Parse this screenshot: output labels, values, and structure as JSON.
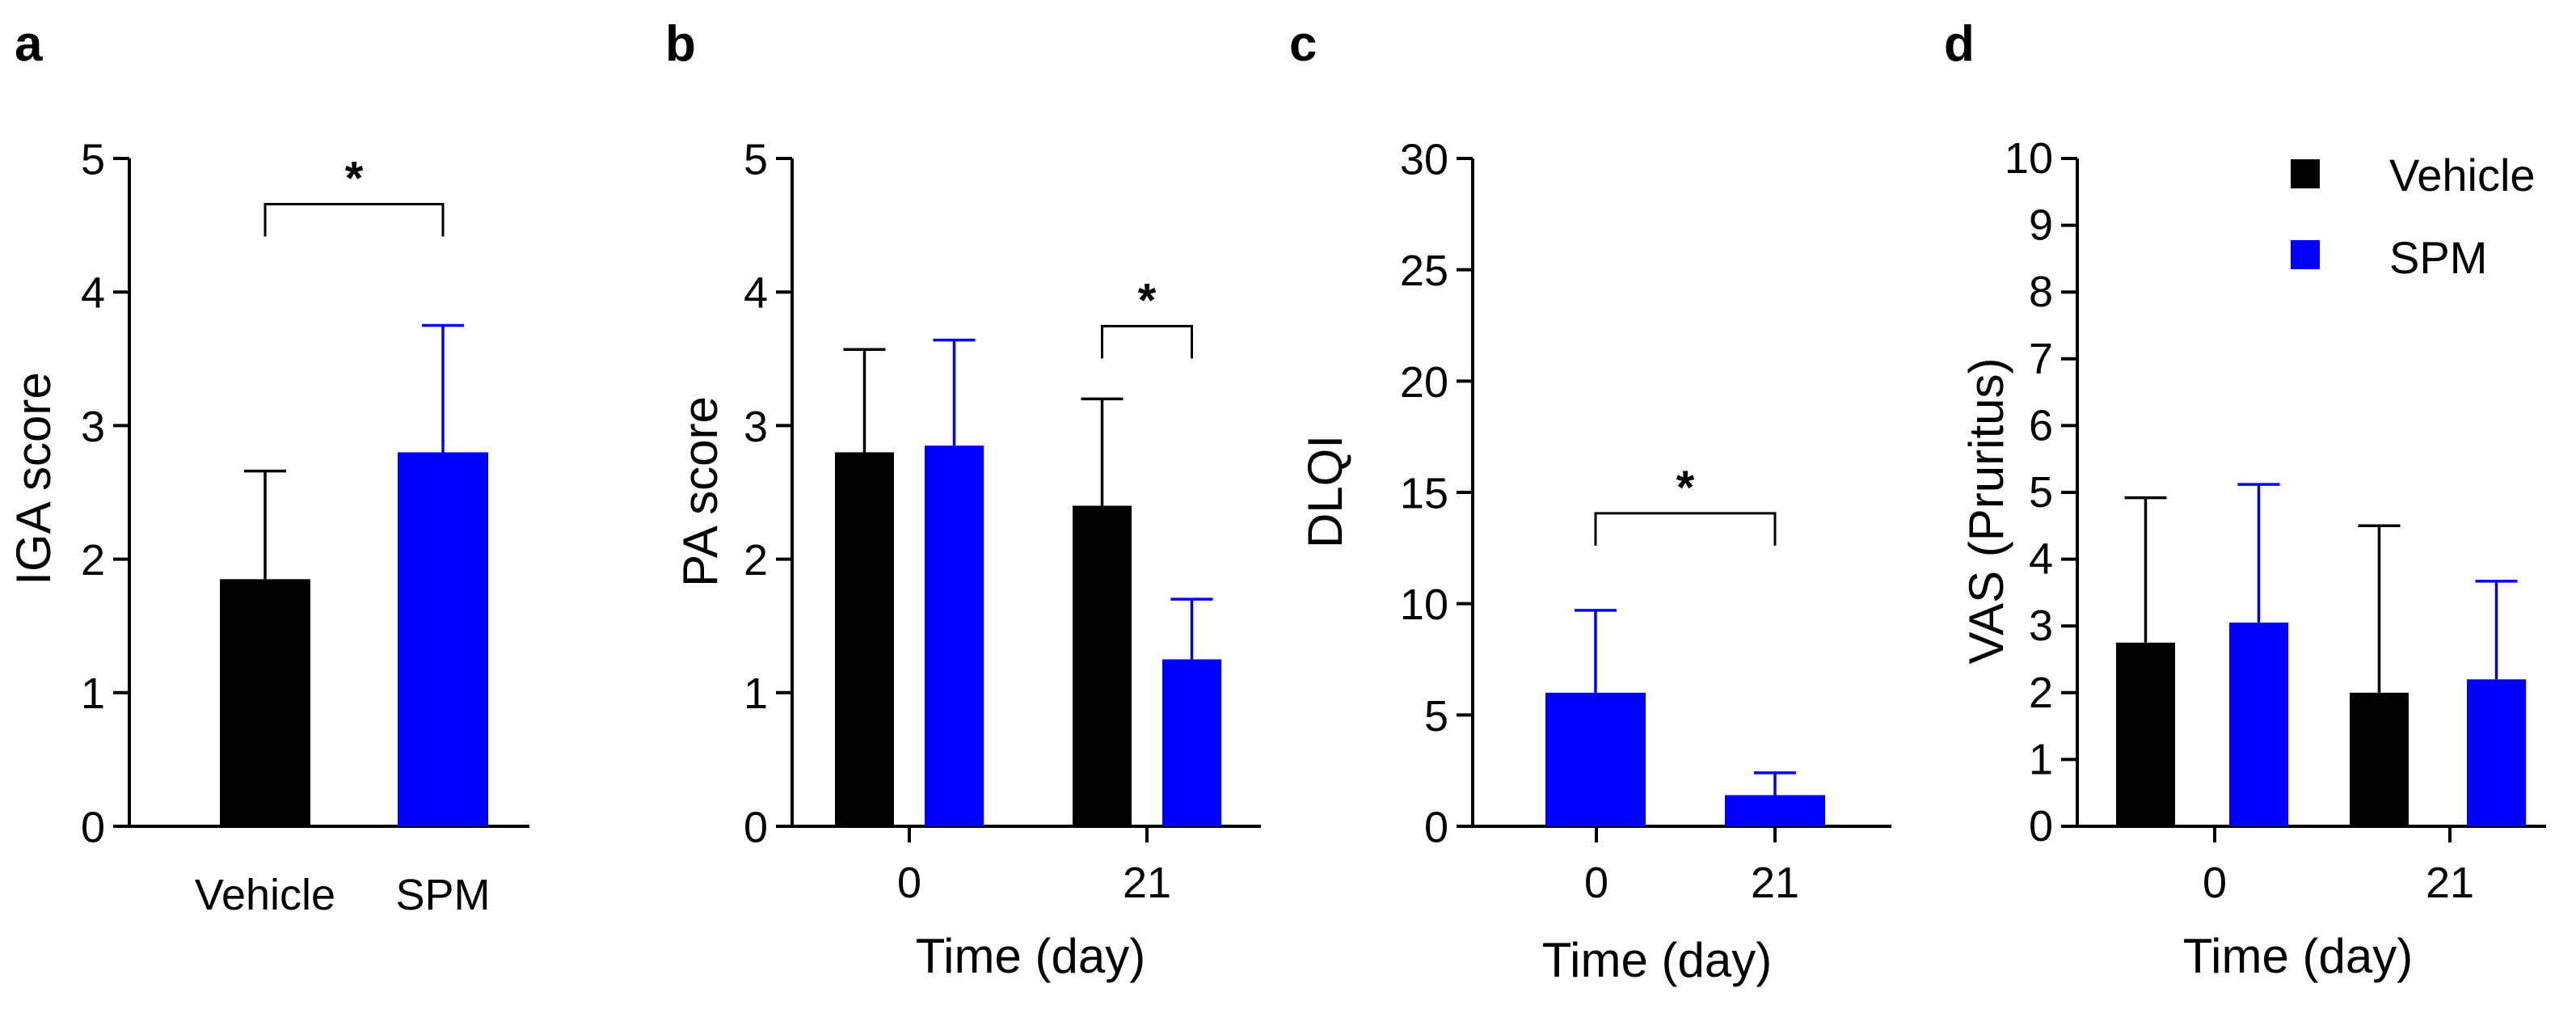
{
  "colors": {
    "Vehicle": "#000000",
    "SPM": "#0000ff"
  },
  "legend": [
    {
      "name": "Vehicle",
      "color": "#000000"
    },
    {
      "name": "SPM",
      "color": "#0000ff"
    }
  ],
  "chart_data": [
    {
      "panel": "a",
      "type": "bar",
      "ylabel": "IGA score",
      "xlabel": "",
      "ylim": [
        0,
        5
      ],
      "yticks": [
        0,
        1,
        2,
        3,
        4,
        5
      ],
      "categories": [
        "Vehicle",
        "SPM"
      ],
      "bars": [
        {
          "group": "Vehicle",
          "series": "Vehicle",
          "value": 1.85,
          "error": 0.81
        },
        {
          "group": "SPM",
          "series": "SPM",
          "value": 2.8,
          "error": 0.95
        }
      ],
      "significance": [
        {
          "from": 0,
          "to": 1,
          "label": "*"
        }
      ]
    },
    {
      "panel": "b",
      "type": "bar",
      "ylabel": "PA score",
      "xlabel": "Time (day)",
      "ylim": [
        0,
        5
      ],
      "yticks": [
        0,
        1,
        2,
        3,
        4,
        5
      ],
      "categories": [
        "0",
        "21"
      ],
      "bars": [
        {
          "group": "0",
          "series": "Vehicle",
          "value": 2.8,
          "error": 0.77
        },
        {
          "group": "0",
          "series": "SPM",
          "value": 2.85,
          "error": 0.79
        },
        {
          "group": "21",
          "series": "Vehicle",
          "value": 2.4,
          "error": 0.8
        },
        {
          "group": "21",
          "series": "SPM",
          "value": 1.25,
          "error": 0.45
        }
      ],
      "significance": [
        {
          "from": 2,
          "to": 3,
          "label": "*"
        }
      ]
    },
    {
      "panel": "c",
      "type": "bar",
      "ylabel": "DLQI",
      "xlabel": "Time (day)",
      "ylim": [
        0,
        30
      ],
      "yticks": [
        0,
        5,
        10,
        15,
        20,
        25,
        30
      ],
      "categories": [
        "0",
        "21"
      ],
      "bars": [
        {
          "group": "0",
          "series": "SPM",
          "value": 6.0,
          "error": 3.7
        },
        {
          "group": "21",
          "series": "SPM",
          "value": 1.4,
          "error": 1.0
        }
      ],
      "significance": [
        {
          "from": 0,
          "to": 1,
          "label": "*"
        }
      ]
    },
    {
      "panel": "d",
      "type": "bar",
      "ylabel": "VAS (Pruritus)",
      "xlabel": "Time (day)",
      "ylim": [
        0,
        10
      ],
      "yticks": [
        0,
        1,
        2,
        3,
        4,
        5,
        6,
        7,
        8,
        9,
        10
      ],
      "categories": [
        "0",
        "21"
      ],
      "bars": [
        {
          "group": "0",
          "series": "Vehicle",
          "value": 2.75,
          "error": 2.17
        },
        {
          "group": "0",
          "series": "SPM",
          "value": 3.05,
          "error": 2.07
        },
        {
          "group": "21",
          "series": "Vehicle",
          "value": 2.0,
          "error": 2.5
        },
        {
          "group": "21",
          "series": "SPM",
          "value": 2.2,
          "error": 1.47
        }
      ],
      "significance": [],
      "legend": "top-right"
    }
  ]
}
